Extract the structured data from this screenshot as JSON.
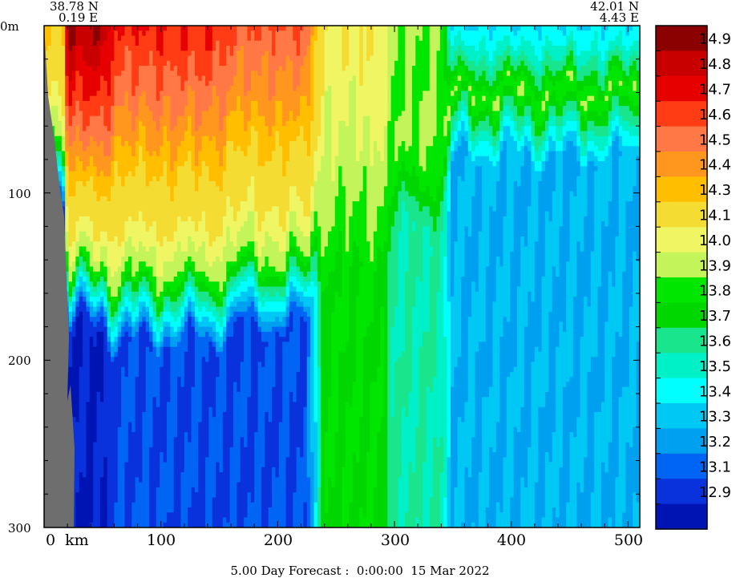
{
  "chart_data": {
    "type": "heatmap",
    "title": "5.00 Day Forecast :  0:00:00  15 Mar 2022",
    "start_point": {
      "lat": "38.78 N",
      "lon": "0.19 E"
    },
    "end_point": {
      "lat": "42.01 N",
      "lon": "4.43 E"
    },
    "x_axis": {
      "unit": "km",
      "range": [
        0,
        510
      ],
      "ticks": [
        "0",
        "100",
        "200",
        "300",
        "400",
        "500"
      ],
      "first_label": "0  km"
    },
    "y_axis": {
      "unit": "m",
      "range": [
        0,
        300
      ],
      "ticks": [
        "0m",
        "100",
        "200",
        "300"
      ],
      "inverted": true
    },
    "colorbar": {
      "levels": [
        "14.9",
        "14.8",
        "14.7",
        "14.6",
        "14.5",
        "14.4",
        "14.3",
        "14.1",
        "14.0",
        "13.9",
        "13.8",
        "13.7",
        "13.6",
        "13.5",
        "13.4",
        "13.3",
        "13.2",
        "13.1",
        "12.9"
      ],
      "colors": [
        "#8b0000",
        "#c80000",
        "#e60000",
        "#ff3c14",
        "#ff7846",
        "#ff961e",
        "#ffbe00",
        "#f5dc32",
        "#f0f564",
        "#c3f55a",
        "#00e600",
        "#00d700",
        "#19e68c",
        "#00f0c8",
        "#00ffff",
        "#00c8f5",
        "#00a0f0",
        "#0064f5",
        "#0a32dc",
        "#0014b4"
      ]
    },
    "sections": [
      {
        "x_range": [
          0,
          20
        ],
        "mixed_temp_top": 14.3,
        "thermocline_depth_m": 60,
        "deep_temp": 13.0
      },
      {
        "x_range": [
          20,
          60
        ],
        "mixed_temp_top": 14.9,
        "thermocline_depth_m": 145,
        "deep_temp": 12.9
      },
      {
        "x_range": [
          60,
          165
        ],
        "mixed_temp_top": 14.7,
        "thermocline_depth_m": 150,
        "deep_temp": 13.1
      },
      {
        "x_range": [
          165,
          240
        ],
        "mixed_temp_top": 14.6,
        "thermocline_depth_m": 140,
        "deep_temp": 13.1
      },
      {
        "x_range": [
          240,
          300
        ],
        "mixed_temp_top": 14.1,
        "thermocline_depth_m": 110,
        "deep_temp": 13.8
      },
      {
        "x_range": [
          300,
          350
        ],
        "mixed_temp_top": 13.9,
        "thermocline_depth_m": 80,
        "deep_temp": 13.6
      },
      {
        "x_range": [
          350,
          510
        ],
        "mixed_temp_top": 13.4,
        "thermocline_depth_m": 40,
        "deep_temp": 13.3
      }
    ]
  }
}
